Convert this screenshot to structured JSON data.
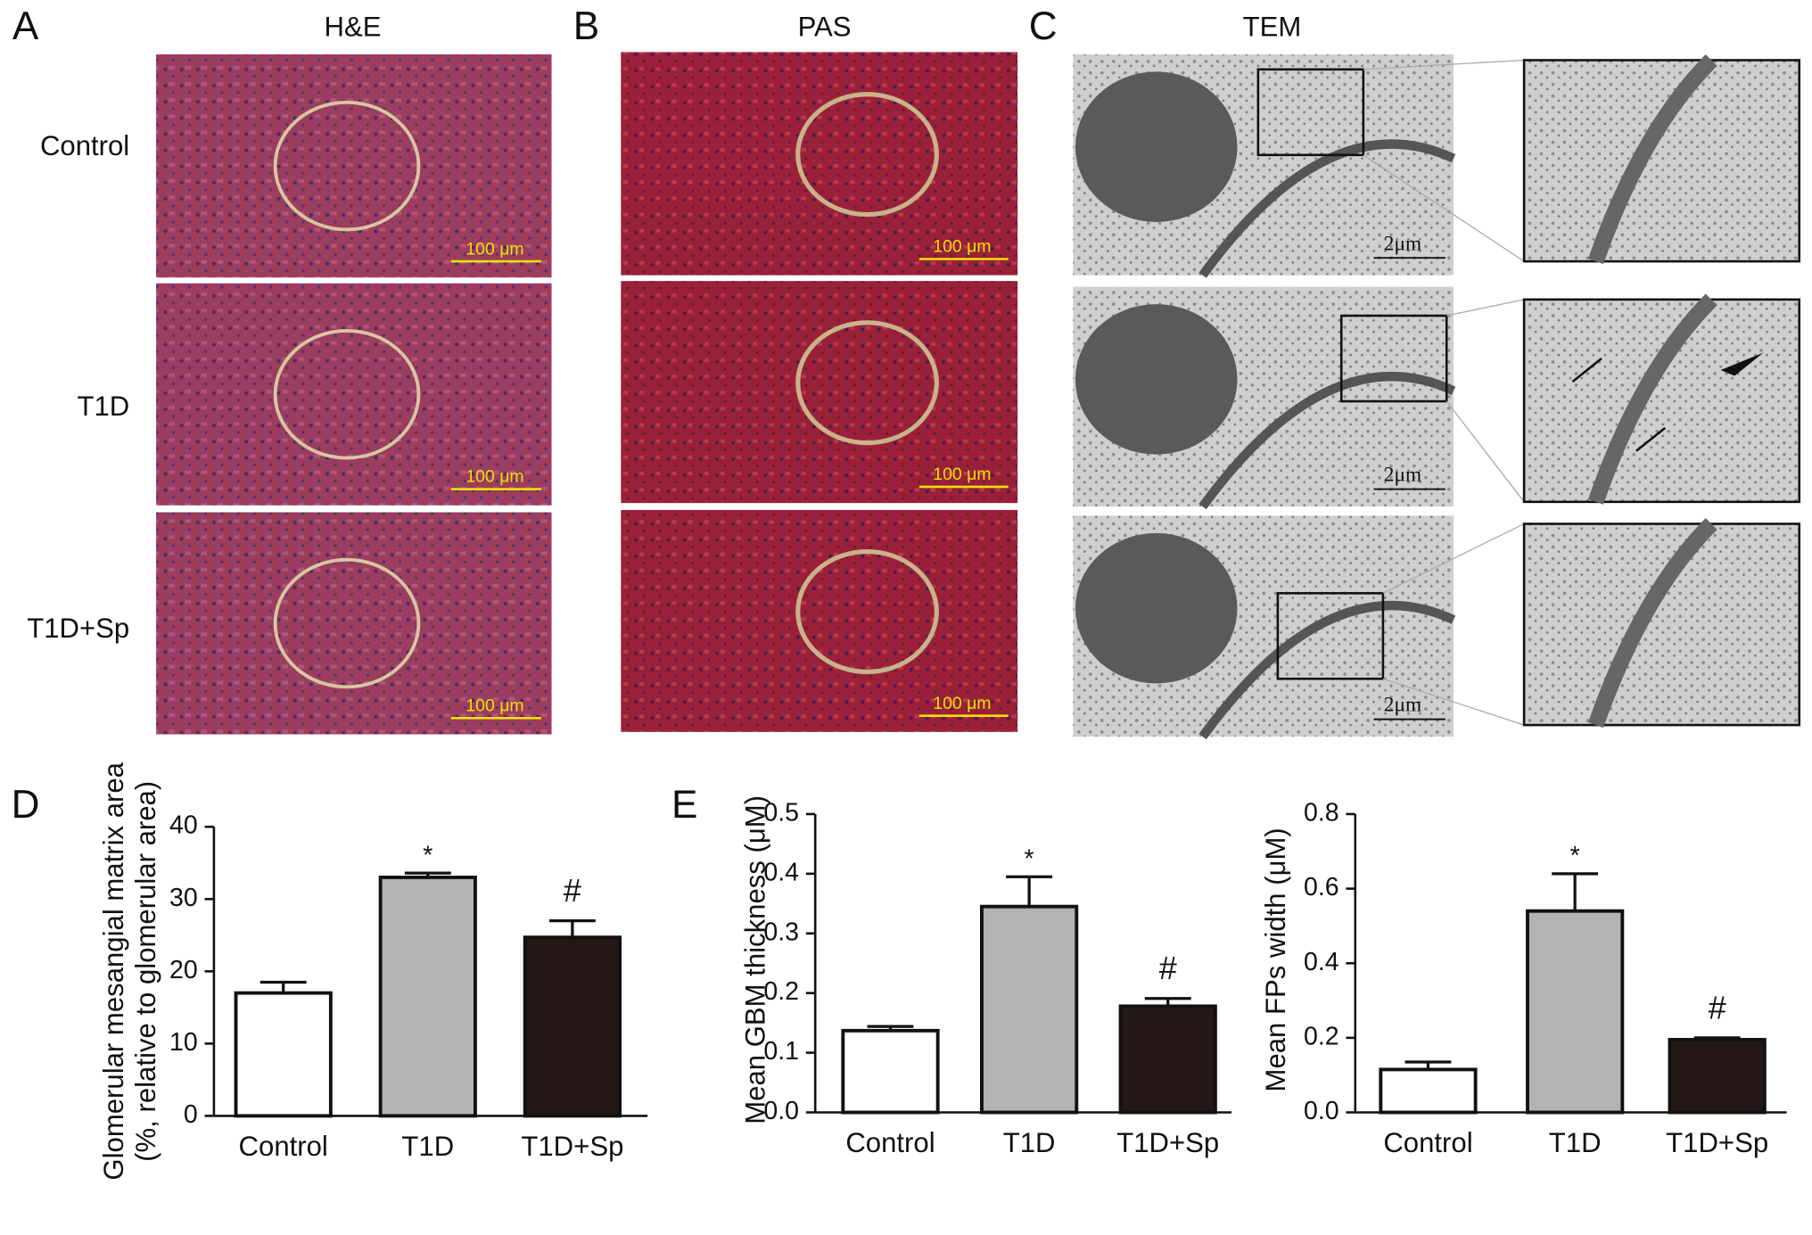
{
  "figure": {
    "panel_labels": [
      "A",
      "B",
      "C",
      "D",
      "E"
    ],
    "column_titles": [
      "H&E",
      "PAS",
      "TEM"
    ],
    "row_labels": [
      "Control",
      "T1D",
      "T1D+Sp"
    ],
    "he_scale_bars": [
      "100 μm",
      "100 μm",
      "100 μm"
    ],
    "pas_scale_bars": [
      "100 μm",
      "100 μm",
      "100 μm"
    ],
    "tem_scale_bars": [
      "2μm",
      "2μm",
      "2μm"
    ]
  },
  "chart_data": [
    {
      "type": "bar",
      "ylabel": [
        "Glomerular mesangial matrix area",
        "(%, relative to glomerular area)"
      ],
      "categories": [
        "Control",
        "T1D",
        "T1D+Sp"
      ],
      "values": [
        17,
        33,
        24.7
      ],
      "errors": [
        1.5,
        0.6,
        2.3
      ],
      "colors": [
        "#ffffff",
        "#b3b3b3",
        "#231816"
      ],
      "annotations": [
        {
          "category": "T1D",
          "text": "*"
        },
        {
          "category": "T1D+Sp",
          "text": "#"
        }
      ],
      "ylim": [
        0,
        40
      ],
      "yticks": [
        0,
        10,
        20,
        30,
        40
      ]
    },
    {
      "type": "bar",
      "ylabel": [
        "Mean GBM thickness (μM)"
      ],
      "categories": [
        "Control",
        "T1D",
        "T1D+Sp"
      ],
      "values": [
        0.137,
        0.345,
        0.178
      ],
      "errors": [
        0.007,
        0.05,
        0.013
      ],
      "colors": [
        "#ffffff",
        "#b3b3b3",
        "#231816"
      ],
      "annotations": [
        {
          "category": "T1D",
          "text": "*"
        },
        {
          "category": "T1D+Sp",
          "text": "#"
        }
      ],
      "ylim": [
        0,
        0.5
      ],
      "yticks": [
        {
          "value": 0,
          "label": "0.0"
        },
        0.1,
        0.2,
        0.3,
        0.4,
        0.5
      ]
    },
    {
      "type": "bar",
      "ylabel": [
        "Mean FPs width (μM)"
      ],
      "categories": [
        "Control",
        "T1D",
        "T1D+Sp"
      ],
      "values": [
        0.115,
        0.54,
        0.195
      ],
      "errors": [
        0.02,
        0.1,
        0.005
      ],
      "colors": [
        "#ffffff",
        "#b3b3b3",
        "#231816"
      ],
      "annotations": [
        {
          "category": "T1D",
          "text": "*"
        },
        {
          "category": "T1D+Sp",
          "text": "#"
        }
      ],
      "ylim": [
        0,
        0.8
      ],
      "yticks": [
        {
          "value": 0,
          "label": "0.0"
        },
        0.2,
        0.4,
        0.6,
        0.8
      ]
    }
  ]
}
